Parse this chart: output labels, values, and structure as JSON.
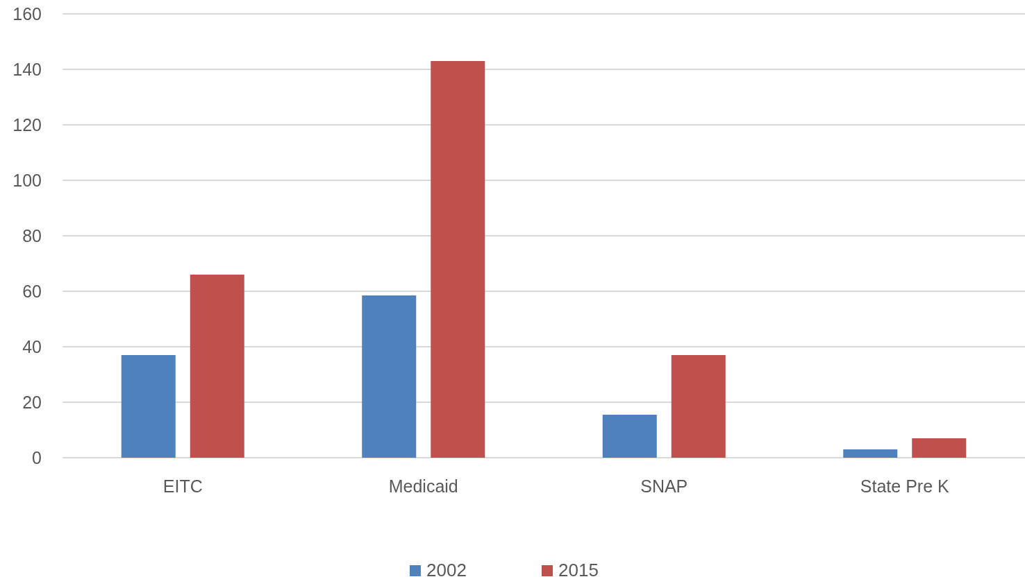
{
  "chart_data": {
    "type": "bar",
    "categories": [
      "EITC",
      "Medicaid",
      "SNAP",
      "State Pre K"
    ],
    "series": [
      {
        "name": "2002",
        "color": "#4f81bd",
        "values": [
          37,
          58.5,
          15.5,
          3
        ]
      },
      {
        "name": "2015",
        "color": "#c0504d",
        "values": [
          66,
          143,
          37,
          7
        ]
      }
    ],
    "ylim": [
      0,
      160
    ],
    "yticks": [
      0,
      20,
      40,
      60,
      80,
      100,
      120,
      140,
      160
    ],
    "grid": "y",
    "legend": "bottom"
  }
}
